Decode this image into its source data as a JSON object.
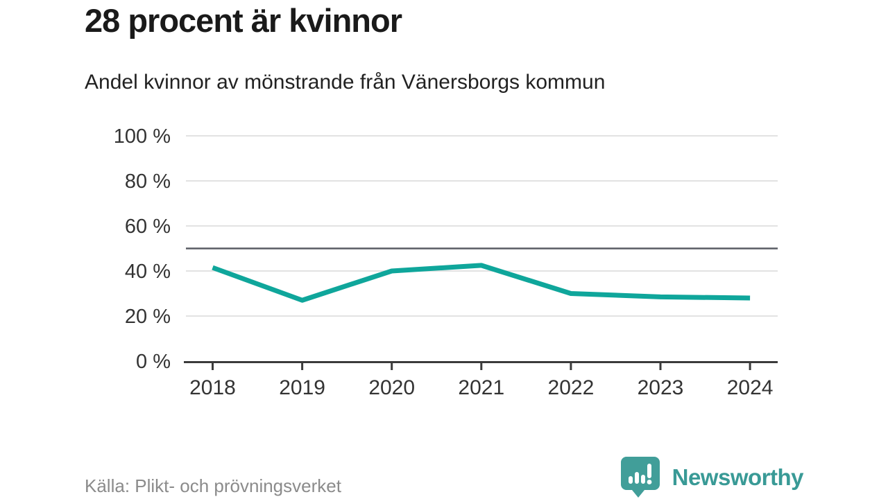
{
  "header": {
    "title": "28 procent är kvinnor",
    "subtitle": "Andel kvinnor av mönstrande från Vänersborgs kommun"
  },
  "footer": {
    "source": "Källa: Plikt- och prövningsverket",
    "brand": "Newsworthy"
  },
  "colors": {
    "line": "#0fa69b",
    "reference_line": "#585c63",
    "grid": "#e2e2e2",
    "axis": "#3b3b3b",
    "tick_text": "#333333",
    "title_text": "#1a1a1a",
    "muted_text": "#8b8b8b",
    "brand": "#399a96",
    "brand_bubble": "#419e99"
  },
  "chart_data": {
    "type": "line",
    "title": "28 procent är kvinnor",
    "subtitle": "Andel kvinnor av mönstrande från Vänersborgs kommun",
    "categories": [
      "2018",
      "2019",
      "2020",
      "2021",
      "2022",
      "2023",
      "2024"
    ],
    "series": [
      {
        "name": "Andel kvinnor",
        "values": [
          41.5,
          27,
          40,
          42.5,
          30,
          28.5,
          28
        ]
      }
    ],
    "xlabel": "",
    "ylabel": "",
    "ylim": [
      0,
      100
    ],
    "yticks": [
      0,
      20,
      40,
      60,
      80,
      100
    ],
    "ytick_suffix": " %",
    "reference_line": 50,
    "grid": true,
    "legend": false
  }
}
